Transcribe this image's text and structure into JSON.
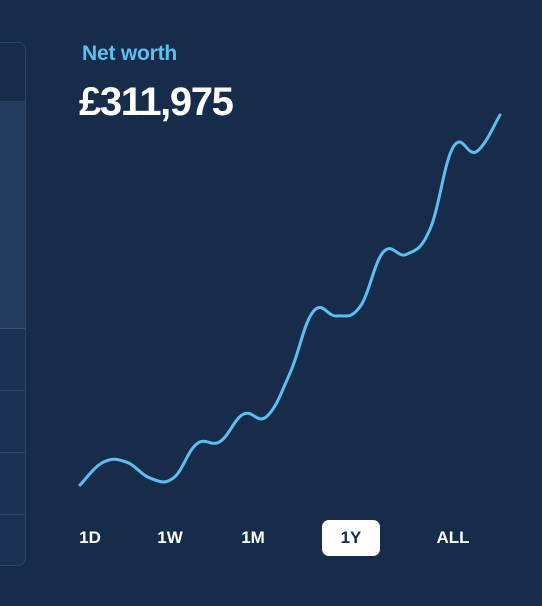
{
  "title": "Net worth",
  "value": "£311,975",
  "range": {
    "options": [
      "1D",
      "1W",
      "1M",
      "1Y",
      "ALL"
    ],
    "selected": "1Y"
  },
  "colors": {
    "background": "#172c4b",
    "line": "#5cc0ee",
    "title": "#5cc0ee",
    "active_pill": "#ffffff"
  },
  "chart_data": {
    "type": "line",
    "series": [
      {
        "values": [
          150000,
          160000,
          160000,
          153000,
          153000,
          168000,
          169000,
          181000,
          180000,
          199000,
          226000,
          224000,
          228000,
          252000,
          251000,
          262000,
          298000,
          296000,
          311975
        ]
      }
    ]
  }
}
